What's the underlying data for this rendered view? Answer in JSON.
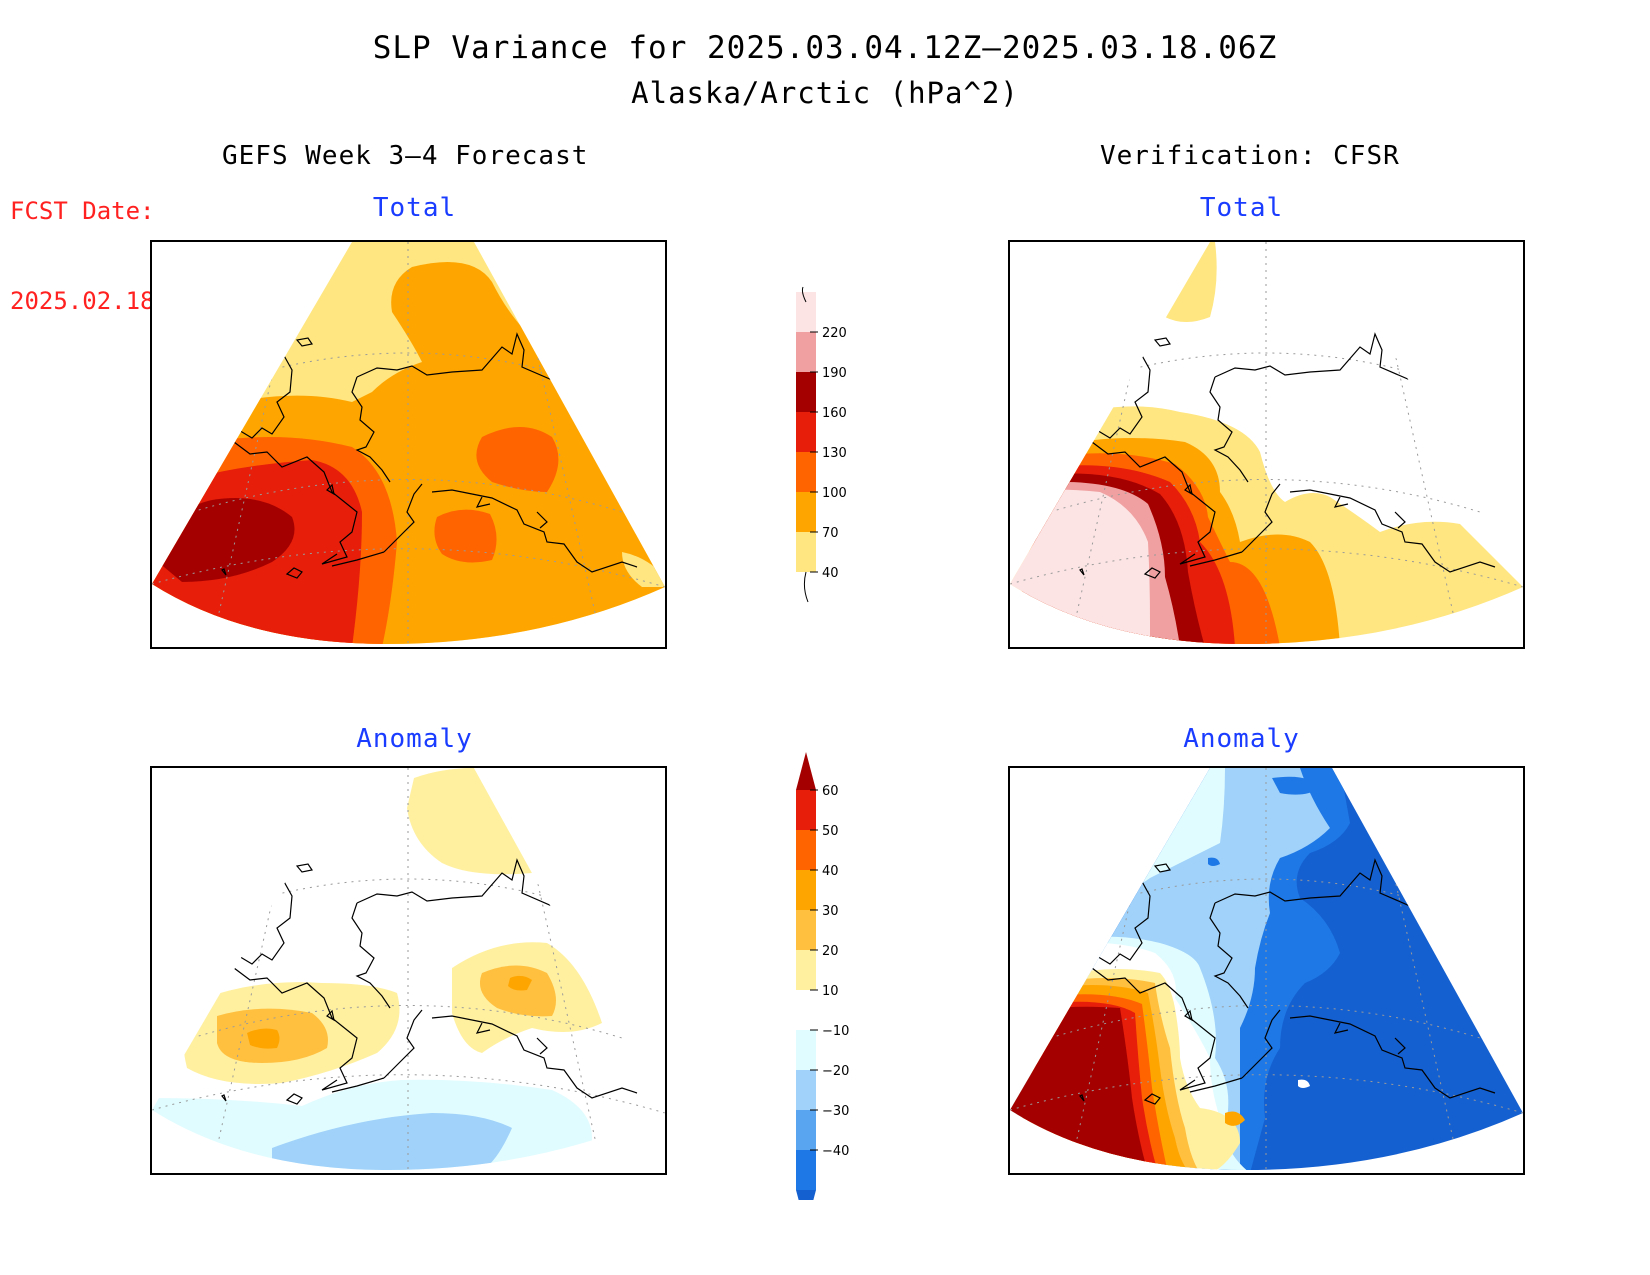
{
  "title": "SLP Variance for 2025.03.04.12Z–2025.03.18.06Z",
  "subtitle": "Alaska/Arctic (hPa^2)",
  "fcst_label": "FCST Date:",
  "fcst_date": "2025.02.18",
  "left_heading": "GEFS Week 3–4 Forecast",
  "right_heading": "Verification: CFSR",
  "panels": {
    "forecast_total": {
      "title": "Total"
    },
    "verif_total": {
      "title": "Total"
    },
    "forecast_anomaly": {
      "title": "Anomaly"
    },
    "verif_anomaly": {
      "title": "Anomaly"
    }
  },
  "colorbar_total": {
    "levels": [
      "40",
      "70",
      "100",
      "130",
      "160",
      "190",
      "220"
    ],
    "colors": [
      "#ffe680",
      "#ffa500",
      "#ff6400",
      "#e61e0a",
      "#a50000",
      "#f0a0a0",
      "#fde4e4"
    ]
  },
  "colorbar_anomaly": {
    "levels": [
      "60",
      "50",
      "40",
      "30",
      "20",
      "10",
      "−10",
      "−20",
      "−30",
      "−40"
    ],
    "colors_top_down": [
      "#a50000",
      "#e61e0a",
      "#ff6400",
      "#ffa500",
      "#ffc040",
      "#fff0a0",
      "#ffffff",
      "#e0fcff",
      "#a0d2fa",
      "#5aa5f0",
      "#1e78e6",
      "#1560d0"
    ]
  },
  "colors": {
    "title_blue": "#1a3cff",
    "fcst_red": "#ff2020",
    "coast": "#000000"
  }
}
